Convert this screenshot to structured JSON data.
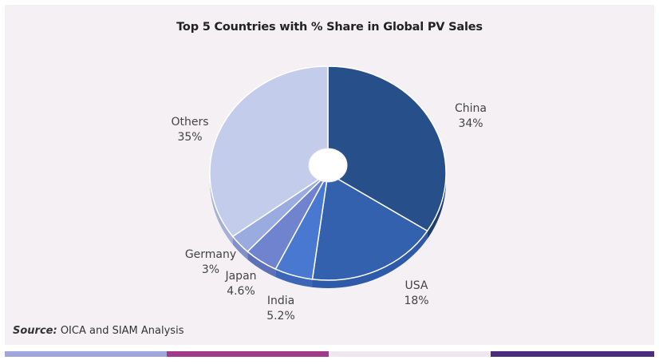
{
  "chart_data": {
    "type": "pie",
    "title": "Top 5 Countries with % Share in Global PV Sales",
    "categories": [
      "China",
      "USA",
      "India",
      "Japan",
      "Germany",
      "Others"
    ],
    "values": [
      34,
      18,
      5.2,
      4.6,
      3,
      35
    ],
    "value_labels": [
      "34%",
      "18%",
      "5.2%",
      "4.6%",
      "3%",
      "35%"
    ],
    "colors": [
      "#27508a",
      "#3461ad",
      "#4878d0",
      "#7083cf",
      "#9aabe0",
      "#c3cdeb"
    ],
    "side_colors": [
      "#1d3d6a",
      "#2f5aa9",
      "#3d67b6",
      "#5e70b8",
      "#8090c9",
      "#a4b0d6"
    ],
    "style": "3d-donut"
  },
  "source": {
    "label": "Source:",
    "text": " OICA and SIAM Analysis"
  },
  "footer_colors": [
    "#9ea6dc",
    "#a23a8a",
    "#f0e6ee",
    "#4a2d7c"
  ]
}
